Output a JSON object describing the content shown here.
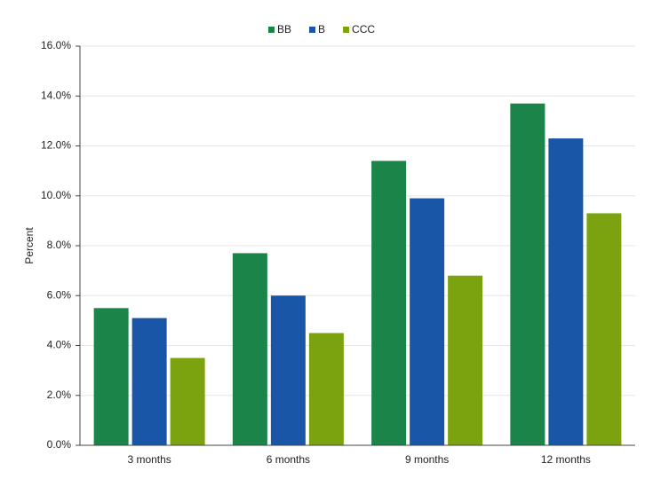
{
  "chart_data": {
    "type": "bar",
    "y_label": "Percent",
    "categories": [
      "3 months",
      "6 months",
      "9 months",
      "12 months"
    ],
    "series": [
      {
        "name": "BB",
        "color": "#1a8449",
        "values": [
          5.5,
          7.7,
          11.4,
          13.7
        ]
      },
      {
        "name": "B",
        "color": "#1a56a8",
        "values": [
          5.1,
          6.0,
          9.9,
          12.3
        ]
      },
      {
        "name": "CCC",
        "color": "#7ba30f",
        "values": [
          3.5,
          4.5,
          6.8,
          9.3
        ]
      }
    ],
    "ylim": [
      0,
      16
    ],
    "yticks": [
      {
        "value": 0,
        "label": "0.0%"
      },
      {
        "value": 2,
        "label": "2.0%"
      },
      {
        "value": 4,
        "label": "4.0%"
      },
      {
        "value": 6,
        "label": "6.0%"
      },
      {
        "value": 8,
        "label": "8.0%"
      },
      {
        "value": 10,
        "label": "10.0%"
      },
      {
        "value": 12,
        "label": "12.0%"
      },
      {
        "value": 14,
        "label": "14.0%"
      },
      {
        "value": 16,
        "label": "16.0%"
      }
    ],
    "grid": true,
    "legend": "top"
  }
}
